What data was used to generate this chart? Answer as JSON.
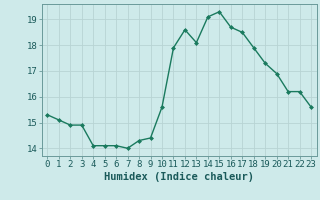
{
  "x": [
    0,
    1,
    2,
    3,
    4,
    5,
    6,
    7,
    8,
    9,
    10,
    11,
    12,
    13,
    14,
    15,
    16,
    17,
    18,
    19,
    20,
    21,
    22,
    23
  ],
  "y": [
    15.3,
    15.1,
    14.9,
    14.9,
    14.1,
    14.1,
    14.1,
    14.0,
    14.3,
    14.4,
    15.6,
    17.9,
    18.6,
    18.1,
    19.1,
    19.3,
    18.7,
    18.5,
    17.9,
    17.3,
    16.9,
    16.2,
    16.2,
    15.6
  ],
  "line_color": "#1a7a5e",
  "marker": "D",
  "markersize": 2.0,
  "linewidth": 1.0,
  "background_color": "#ceeaea",
  "grid_color": "#b8d4d4",
  "xlabel": "Humidex (Indice chaleur)",
  "ylabel": "",
  "xlim": [
    -0.5,
    23.5
  ],
  "ylim": [
    13.7,
    19.6
  ],
  "yticks": [
    14,
    15,
    16,
    17,
    18,
    19
  ],
  "xticks": [
    0,
    1,
    2,
    3,
    4,
    5,
    6,
    7,
    8,
    9,
    10,
    11,
    12,
    13,
    14,
    15,
    16,
    17,
    18,
    19,
    20,
    21,
    22,
    23
  ],
  "tick_fontsize": 6.5,
  "xlabel_fontsize": 7.5
}
